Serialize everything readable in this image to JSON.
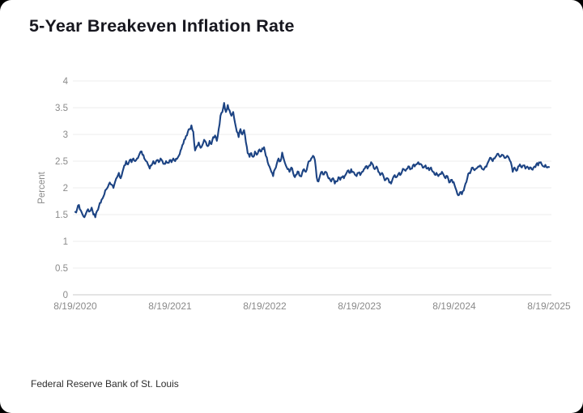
{
  "chart_data": {
    "type": "line",
    "title": "5-Year Breakeven Inflation Rate",
    "xlabel": "",
    "ylabel": "Percent",
    "ylim": [
      0,
      4
    ],
    "y_ticks": [
      0,
      0.5,
      1,
      1.5,
      2,
      2.5,
      3,
      3.5,
      4
    ],
    "x_tick_labels": [
      "8/19/2020",
      "8/19/2021",
      "8/19/2022",
      "8/19/2023",
      "8/19/2024",
      "8/19/2025"
    ],
    "x_start": "8/19/2020",
    "x_end": "8/19/2025",
    "frequency": "weekly",
    "grid": "horizontal",
    "legend": "none",
    "series": [
      {
        "name": "5-Year Breakeven Inflation Rate",
        "color": "#1c4383",
        "values": [
          1.55,
          1.6,
          1.68,
          1.58,
          1.5,
          1.45,
          1.53,
          1.6,
          1.56,
          1.63,
          1.5,
          1.45,
          1.57,
          1.65,
          1.72,
          1.8,
          1.88,
          1.97,
          2.02,
          2.1,
          2.06,
          2.0,
          2.12,
          2.2,
          2.28,
          2.18,
          2.3,
          2.42,
          2.5,
          2.44,
          2.52,
          2.48,
          2.55,
          2.5,
          2.55,
          2.6,
          2.68,
          2.62,
          2.55,
          2.5,
          2.44,
          2.36,
          2.42,
          2.5,
          2.45,
          2.52,
          2.48,
          2.55,
          2.5,
          2.45,
          2.5,
          2.47,
          2.52,
          2.48,
          2.55,
          2.5,
          2.54,
          2.6,
          2.7,
          2.8,
          2.9,
          2.97,
          3.05,
          3.1,
          3.17,
          3.05,
          2.7,
          2.78,
          2.85,
          2.75,
          2.8,
          2.9,
          2.85,
          2.78,
          2.88,
          2.82,
          2.95,
          2.98,
          2.88,
          3.1,
          3.35,
          3.42,
          3.59,
          3.42,
          3.55,
          3.45,
          3.35,
          3.42,
          3.22,
          3.05,
          2.95,
          3.1,
          3.0,
          3.08,
          2.85,
          2.65,
          2.58,
          2.65,
          2.58,
          2.68,
          2.62,
          2.7,
          2.68,
          2.74,
          2.76,
          2.6,
          2.48,
          2.4,
          2.3,
          2.22,
          2.35,
          2.45,
          2.55,
          2.5,
          2.66,
          2.52,
          2.42,
          2.35,
          2.3,
          2.38,
          2.28,
          2.2,
          2.25,
          2.3,
          2.22,
          2.28,
          2.35,
          2.3,
          2.42,
          2.5,
          2.55,
          2.6,
          2.52,
          2.2,
          2.12,
          2.25,
          2.3,
          2.25,
          2.3,
          2.22,
          2.18,
          2.12,
          2.18,
          2.08,
          2.12,
          2.2,
          2.15,
          2.2,
          2.18,
          2.25,
          2.32,
          2.28,
          2.35,
          2.3,
          2.25,
          2.22,
          2.28,
          2.24,
          2.3,
          2.35,
          2.4,
          2.36,
          2.42,
          2.48,
          2.43,
          2.35,
          2.4,
          2.3,
          2.24,
          2.28,
          2.2,
          2.15,
          2.18,
          2.1,
          2.08,
          2.18,
          2.24,
          2.2,
          2.26,
          2.24,
          2.3,
          2.35,
          2.32,
          2.36,
          2.4,
          2.36,
          2.42,
          2.4,
          2.44,
          2.48,
          2.45,
          2.42,
          2.38,
          2.42,
          2.36,
          2.33,
          2.38,
          2.3,
          2.25,
          2.28,
          2.22,
          2.26,
          2.3,
          2.24,
          2.18,
          2.22,
          2.1,
          2.15,
          2.1,
          2.05,
          1.95,
          1.86,
          1.92,
          1.88,
          1.95,
          2.08,
          2.18,
          2.28,
          2.32,
          2.38,
          2.33,
          2.36,
          2.4,
          2.42,
          2.36,
          2.34,
          2.4,
          2.45,
          2.52,
          2.56,
          2.5,
          2.55,
          2.6,
          2.64,
          2.58,
          2.62,
          2.6,
          2.56,
          2.6,
          2.55,
          2.48,
          2.3,
          2.38,
          2.32,
          2.4,
          2.44,
          2.38,
          2.42,
          2.36,
          2.4,
          2.35,
          2.38,
          2.34,
          2.4,
          2.44,
          2.42,
          2.47,
          2.44,
          2.4,
          2.43,
          2.38,
          2.39
        ]
      }
    ]
  },
  "footer": {
    "source": "Federal Reserve Bank of St. Louis"
  },
  "colors": {
    "line": "#1c4383",
    "gridline": "#ececec",
    "axis_line": "#c9c9c9",
    "tick_text": "#8a8a8a",
    "title_text": "#17171f",
    "footer_text": "#2e2e2e",
    "card_bg": "#ffffff",
    "outside_bg": "#000000"
  }
}
